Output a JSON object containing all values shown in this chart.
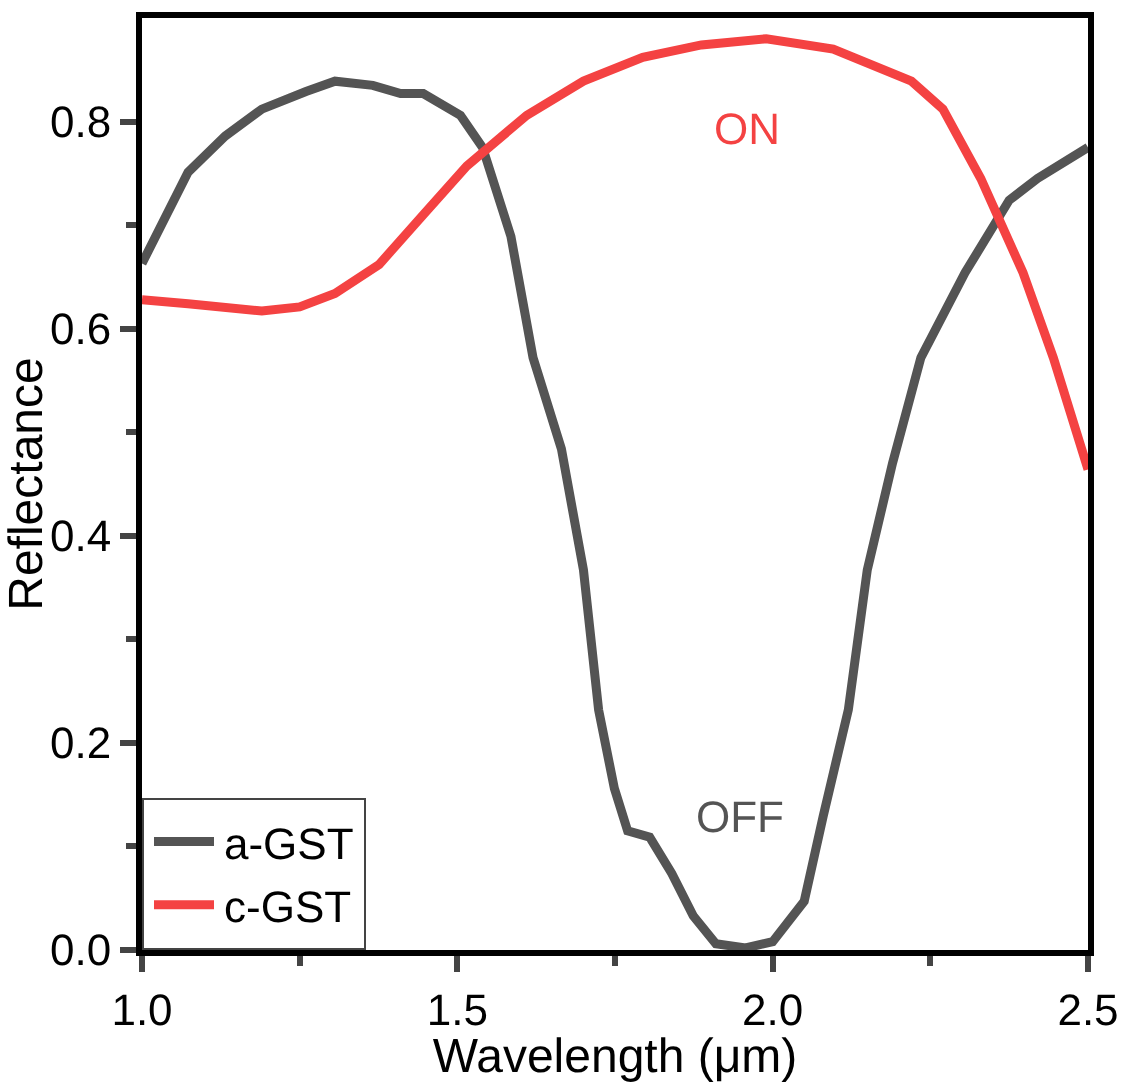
{
  "chart_data": {
    "type": "line",
    "xlabel": "Wavelength (μm)",
    "ylabel": "Reflectance",
    "xlim": [
      1.0,
      2.5
    ],
    "ylim": [
      0,
      0.9
    ],
    "xticks": [
      {
        "value": 1.0,
        "label": "1.0"
      },
      {
        "value": 1.25,
        "label": null
      },
      {
        "value": 1.5,
        "label": "1.5"
      },
      {
        "value": 1.75,
        "label": null
      },
      {
        "value": 2.0,
        "label": "2.0"
      },
      {
        "value": 2.25,
        "label": null
      },
      {
        "value": 2.5,
        "label": "2.5"
      }
    ],
    "yticks": [
      {
        "value": 0.0,
        "label": "0.0"
      },
      {
        "value": 0.1,
        "label": null
      },
      {
        "value": 0.2,
        "label": "0.2"
      },
      {
        "value": 0.3,
        "label": null
      },
      {
        "value": 0.4,
        "label": "0.4"
      },
      {
        "value": 0.5,
        "label": null
      },
      {
        "value": 0.6,
        "label": "0.6"
      },
      {
        "value": 0.7,
        "label": null
      },
      {
        "value": 0.8,
        "label": "0.8"
      }
    ],
    "grid": false,
    "legend": "bottom left",
    "line_style": "solid",
    "marker": "none",
    "series": [
      {
        "name": "a-GST",
        "color": "#545454",
        "x": [
          1.0,
          1.073,
          1.132,
          1.19,
          1.26,
          1.306,
          1.366,
          1.41,
          1.446,
          1.505,
          1.54,
          1.585,
          1.62,
          1.665,
          1.7,
          1.724,
          1.749,
          1.77,
          1.805,
          1.84,
          1.874,
          1.91,
          1.957,
          2.0,
          2.05,
          2.08,
          2.12,
          2.15,
          2.19,
          2.235,
          2.305,
          2.375,
          2.42,
          2.5
        ],
        "values": [
          0.663,
          0.751,
          0.786,
          0.812,
          0.829,
          0.839,
          0.835,
          0.827,
          0.827,
          0.806,
          0.775,
          0.689,
          0.572,
          0.484,
          0.367,
          0.232,
          0.156,
          0.115,
          0.109,
          0.074,
          0.033,
          0.006,
          0.002,
          0.008,
          0.047,
          0.129,
          0.232,
          0.367,
          0.47,
          0.572,
          0.654,
          0.724,
          0.745,
          0.775
        ]
      },
      {
        "name": "c-GST",
        "color": "#f44242",
        "x": [
          1.0,
          1.073,
          1.19,
          1.25,
          1.306,
          1.376,
          1.446,
          1.515,
          1.61,
          1.7,
          1.794,
          1.887,
          1.99,
          2.096,
          2.22,
          2.27,
          2.33,
          2.397,
          2.445,
          2.5
        ],
        "values": [
          0.628,
          0.624,
          0.617,
          0.621,
          0.634,
          0.662,
          0.71,
          0.757,
          0.806,
          0.839,
          0.862,
          0.874,
          0.88,
          0.87,
          0.839,
          0.812,
          0.745,
          0.654,
          0.572,
          0.464
        ]
      }
    ],
    "annotations": [
      "ON",
      "OFF"
    ]
  }
}
